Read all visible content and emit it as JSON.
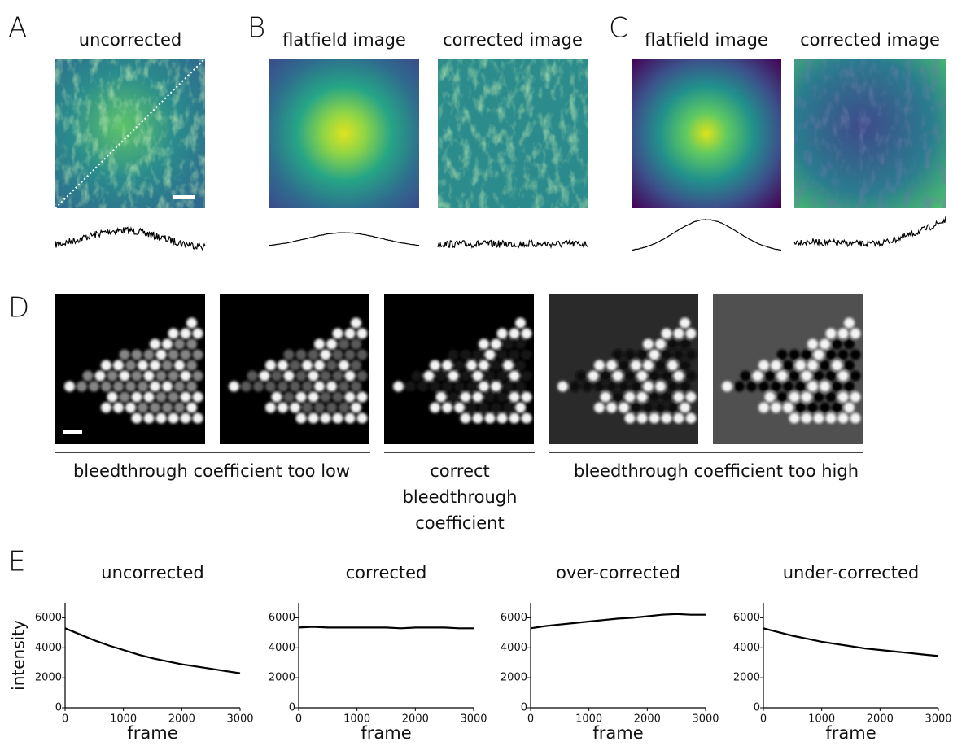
{
  "panels": [
    {
      "label": "A",
      "titles": [
        "uncorrected"
      ]
    },
    {
      "label": "B",
      "titles": [
        "flatfield image",
        "corrected image"
      ]
    },
    {
      "label": "C",
      "titles": [
        "flatfield image",
        "corrected image"
      ]
    },
    {
      "label": "D",
      "captions": [
        "bleedthrough coefficient too low",
        "correct",
        "bleedthrough",
        "coefficient",
        "bleedthrough coefficient too high"
      ]
    },
    {
      "label": "E"
    }
  ],
  "chart_data": [
    {
      "type": "line",
      "title": "uncorrected",
      "xlabel": "frame",
      "ylabel": "intensity",
      "color": "#000000",
      "x": [
        0,
        250,
        500,
        750,
        1000,
        1250,
        1500,
        1750,
        2000,
        2250,
        2500,
        2750,
        3000
      ],
      "values": [
        5300,
        4900,
        4500,
        4150,
        3850,
        3550,
        3300,
        3100,
        2900,
        2750,
        2600,
        2450,
        2300
      ],
      "xlim": [
        0,
        3000
      ],
      "ylim": [
        0,
        7000
      ],
      "xticks": [
        0,
        1000,
        2000,
        3000
      ],
      "yticks": [
        0,
        2000,
        4000,
        6000
      ]
    },
    {
      "type": "line",
      "title": "corrected",
      "xlabel": "frame",
      "color": "#000000",
      "x": [
        0,
        250,
        500,
        750,
        1000,
        1250,
        1500,
        1750,
        2000,
        2250,
        2500,
        2750,
        3000
      ],
      "values": [
        5350,
        5400,
        5350,
        5350,
        5350,
        5350,
        5350,
        5300,
        5350,
        5350,
        5350,
        5300,
        5300
      ],
      "xlim": [
        0,
        3000
      ],
      "ylim": [
        0,
        7000
      ],
      "xticks": [
        0,
        1000,
        2000,
        3000
      ],
      "yticks": [
        0,
        2000,
        4000,
        6000
      ]
    },
    {
      "type": "line",
      "title": "over-corrected",
      "xlabel": "frame",
      "color": "#000000",
      "x": [
        0,
        250,
        500,
        750,
        1000,
        1250,
        1500,
        1750,
        2000,
        2250,
        2500,
        2750,
        3000
      ],
      "values": [
        5300,
        5450,
        5550,
        5650,
        5750,
        5850,
        5950,
        6000,
        6100,
        6200,
        6250,
        6200,
        6200
      ],
      "xlim": [
        0,
        3000
      ],
      "ylim": [
        0,
        7000
      ],
      "xticks": [
        0,
        1000,
        2000,
        3000
      ],
      "yticks": [
        0,
        2000,
        4000,
        6000
      ]
    },
    {
      "type": "line",
      "title": "under-corrected",
      "xlabel": "frame",
      "color": "#000000",
      "x": [
        0,
        250,
        500,
        750,
        1000,
        1250,
        1500,
        1750,
        2000,
        2250,
        2500,
        2750,
        3000
      ],
      "values": [
        5300,
        5050,
        4800,
        4600,
        4400,
        4250,
        4100,
        3950,
        3850,
        3750,
        3650,
        3550,
        3450
      ],
      "xlim": [
        0,
        3000
      ],
      "ylim": [
        0,
        7000
      ],
      "xticks": [
        0,
        1000,
        2000,
        3000
      ],
      "yticks": [
        0,
        2000,
        4000,
        6000
      ]
    }
  ]
}
